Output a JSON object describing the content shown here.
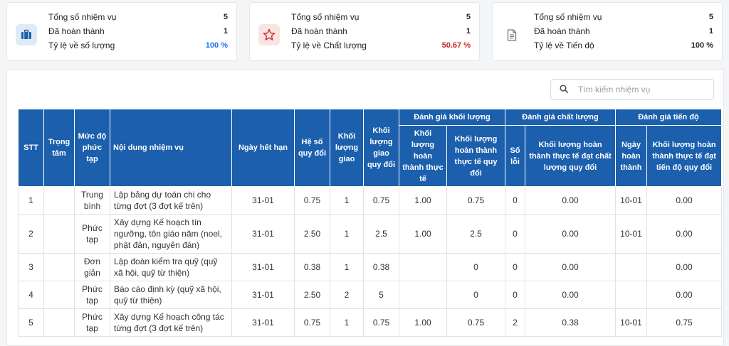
{
  "cards": [
    {
      "icon": "briefcase-icon",
      "rows": [
        {
          "label": "Tổng số nhiệm vụ",
          "value": "5"
        },
        {
          "label": "Đã hoàn thành",
          "value": "1"
        },
        {
          "label": "Tỷ lệ về số lượng",
          "value": "100 %"
        }
      ],
      "accent": "#1a73e8"
    },
    {
      "icon": "star-icon",
      "rows": [
        {
          "label": "Tổng số nhiệm vụ",
          "value": "5"
        },
        {
          "label": "Đã hoàn thành",
          "value": "1"
        },
        {
          "label": "Tỷ lệ về Chất lượng",
          "value": "50.67 %"
        }
      ],
      "accent": "#c62828"
    },
    {
      "icon": "document-icon",
      "rows": [
        {
          "label": "Tổng số nhiệm vụ",
          "value": "5"
        },
        {
          "label": "Đã hoàn thành",
          "value": "1"
        },
        {
          "label": "Tỷ lệ về Tiến độ",
          "value": "100 %"
        }
      ],
      "accent": "#222222"
    }
  ],
  "search": {
    "placeholder": "Tìm kiếm nhiệm vụ"
  },
  "table": {
    "headers": {
      "stt": "STT",
      "trong_tam": "Trọng tâm",
      "muc_do": "Mức độ phức tạp",
      "noi_dung": "Nội dung nhiệm vụ",
      "ngay_het_han": "Ngày hết hạn",
      "he_so": "Hệ số quy đổi",
      "khoi_luong_giao": "Khối lượng giao",
      "khoi_luong_giao_quy_doi": "Khối lượng giao quy đổi",
      "group_kl": "Đánh giá khối lượng",
      "kl_hoan_thanh": "Khối lượng hoàn thành thực tế",
      "kl_hoan_thanh_qd": "Khối lượng hoàn thành thực tế quy đổi",
      "group_cl": "Đánh giá chất lượng",
      "so_loi": "Số lỗi",
      "kl_cl_qd": "Khối lượng hoàn thành thực tế đạt chất lượng quy đổi",
      "group_td": "Đánh giá tiến độ",
      "ngay_hoan_thanh": "Ngày hoàn thành",
      "kl_td_qd": "Khối lượng hoàn thành thực tế đạt tiến độ quy đổi"
    },
    "rows": [
      {
        "stt": "1",
        "trong_tam": "",
        "muc_do": "Trung bình",
        "noi_dung": "Lập bảng dự toán chi cho từng đợt (3 đợt kế trên)",
        "ngay_het_han": "31-01",
        "he_so": "0.75",
        "kl_giao": "1",
        "kl_giao_qd": "0.75",
        "kl_ht": "1.00",
        "kl_ht_qd": "0.75",
        "so_loi": "0",
        "kl_cl_qd": "0.00",
        "ngay_ht": "10-01",
        "kl_td_qd": "0.00"
      },
      {
        "stt": "2",
        "trong_tam": "",
        "muc_do": "Phức tạp",
        "noi_dung": "Xây dựng Kế hoạch tín ngưỡng, tôn giáo năm (noel, phật đản, nguyên đán)",
        "ngay_het_han": "31-01",
        "he_so": "2.50",
        "kl_giao": "1",
        "kl_giao_qd": "2.5",
        "kl_ht": "1.00",
        "kl_ht_qd": "2.5",
        "so_loi": "0",
        "kl_cl_qd": "0.00",
        "ngay_ht": "10-01",
        "kl_td_qd": "0.00"
      },
      {
        "stt": "3",
        "trong_tam": "",
        "muc_do": "Đơn giản",
        "noi_dung": "Lập đoàn kiểm tra quỹ (quỹ xã hội, quỹ từ thiện)",
        "ngay_het_han": "31-01",
        "he_so": "0.38",
        "kl_giao": "1",
        "kl_giao_qd": "0.38",
        "kl_ht": "",
        "kl_ht_qd": "0",
        "so_loi": "0",
        "kl_cl_qd": "0.00",
        "ngay_ht": "",
        "kl_td_qd": "0.00"
      },
      {
        "stt": "4",
        "trong_tam": "",
        "muc_do": "Phức tạp",
        "noi_dung": "Báo cáo định kỳ (quỹ xã hội, quỹ từ thiện)",
        "ngay_het_han": "31-01",
        "he_so": "2.50",
        "kl_giao": "2",
        "kl_giao_qd": "5",
        "kl_ht": "",
        "kl_ht_qd": "0",
        "so_loi": "0",
        "kl_cl_qd": "0.00",
        "ngay_ht": "",
        "kl_td_qd": "0.00"
      },
      {
        "stt": "5",
        "trong_tam": "",
        "muc_do": "Phức tạp",
        "noi_dung": "Xây dựng Kế hoạch công tác từng đợt (3 đợt kế trên)",
        "ngay_het_han": "31-01",
        "he_so": "0.75",
        "kl_giao": "1",
        "kl_giao_qd": "0.75",
        "kl_ht": "1.00",
        "kl_ht_qd": "0.75",
        "so_loi": "2",
        "kl_cl_qd": "0.38",
        "ngay_ht": "10-01",
        "kl_td_qd": "0.75"
      }
    ]
  }
}
